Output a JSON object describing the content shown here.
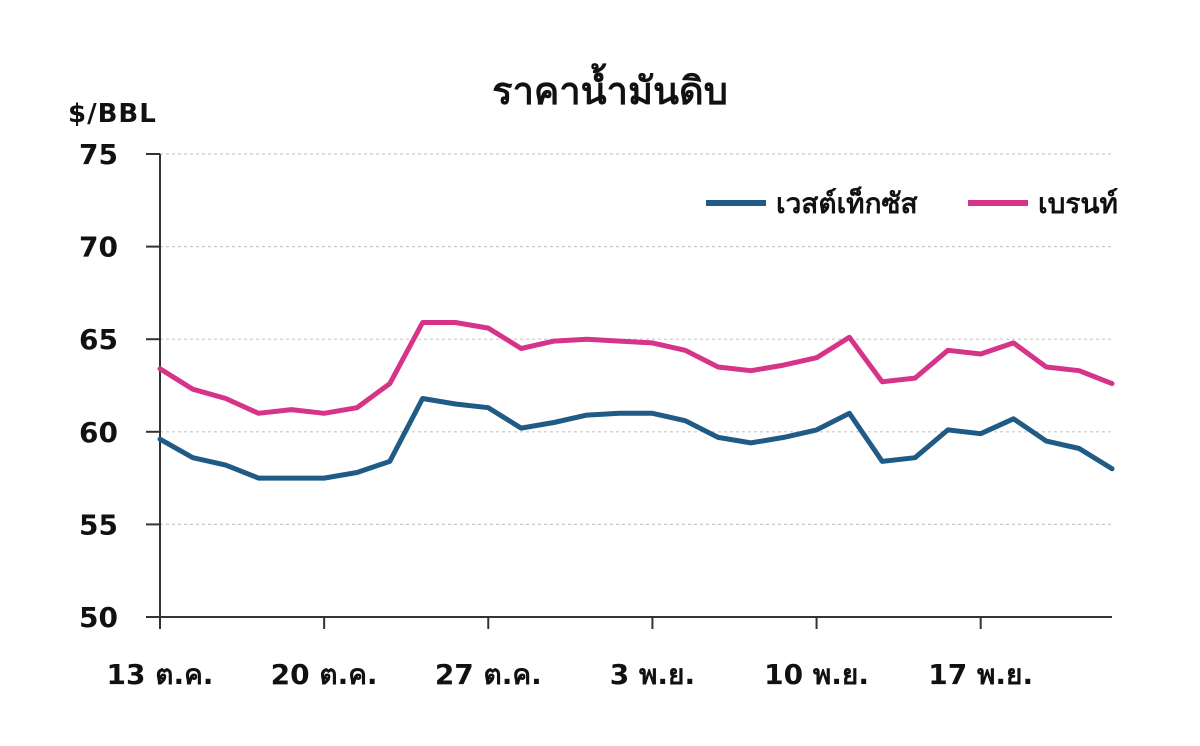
{
  "chart_data": {
    "type": "line",
    "title": "ราคาน้ำมันดิบ",
    "ylabel": "$/BBL",
    "ylim": [
      50,
      75
    ],
    "yticks": [
      50,
      55,
      60,
      65,
      70,
      75
    ],
    "x_tick_labels": [
      "13 ต.ค.",
      "20 ต.ค.",
      "27 ต.ค.",
      "3 พ.ย.",
      "10 พ.ย.",
      "17 พ.ย."
    ],
    "x_tick_dates": [
      "10-13",
      "10-20",
      "10-27",
      "11-03",
      "11-10",
      "11-17"
    ],
    "x": [
      "10-13",
      "10-14",
      "10-15",
      "10-16",
      "10-17",
      "10-20",
      "10-21",
      "10-22",
      "10-23",
      "10-24",
      "10-27",
      "10-28",
      "10-29",
      "10-30",
      "10-31",
      "11-03",
      "11-04",
      "11-05",
      "11-06",
      "11-07",
      "11-10",
      "11-11",
      "11-12",
      "11-13",
      "11-14",
      "11-17",
      "11-18",
      "11-19",
      "11-20",
      "11-21"
    ],
    "series": [
      {
        "name": "เวสต์เท็กซัส",
        "color": "#1f5b85",
        "values": [
          59.6,
          58.6,
          58.2,
          57.5,
          57.5,
          57.5,
          57.8,
          58.4,
          61.8,
          61.5,
          61.3,
          60.2,
          60.5,
          60.9,
          61.0,
          61.0,
          60.6,
          59.7,
          59.4,
          59.7,
          60.1,
          61.0,
          58.4,
          58.6,
          60.1,
          59.9,
          60.7,
          59.5,
          59.1,
          58.0
        ]
      },
      {
        "name": "เบรนท์",
        "color": "#d6338a",
        "values": [
          63.4,
          62.3,
          61.8,
          61.0,
          61.2,
          61.0,
          61.3,
          62.6,
          65.9,
          65.9,
          65.6,
          64.5,
          64.9,
          65.0,
          64.9,
          64.8,
          64.4,
          63.5,
          63.3,
          63.6,
          64.0,
          65.1,
          62.7,
          62.9,
          64.4,
          64.2,
          64.8,
          63.5,
          63.3,
          62.6
        ]
      }
    ],
    "grid": true,
    "legend_position": "top-right"
  }
}
